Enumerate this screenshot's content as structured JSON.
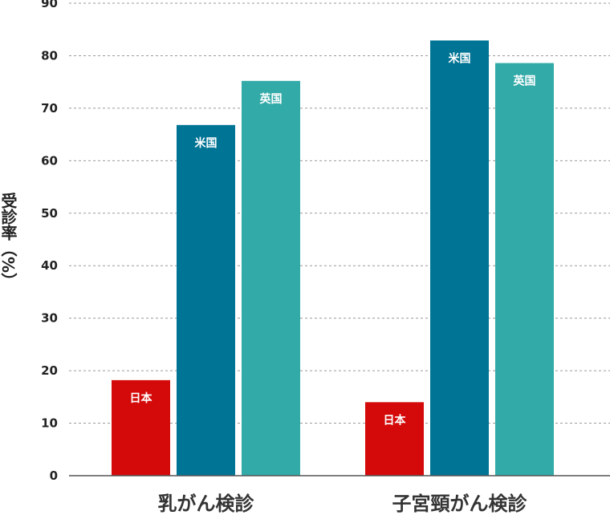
{
  "chart_data": {
    "type": "bar",
    "ylabel": "受診率（%）",
    "ylim": [
      0,
      90
    ],
    "yticks": [
      0,
      10,
      20,
      30,
      40,
      50,
      60,
      70,
      80,
      90
    ],
    "grid": true,
    "categories": [
      "乳がん検診",
      "子宮頸がん検診"
    ],
    "series": [
      {
        "name": "日本",
        "color": "#d40a0a",
        "values": [
          18.2,
          14.0
        ]
      },
      {
        "name": "米国",
        "color": "#007494",
        "values": [
          66.8,
          82.9
        ]
      },
      {
        "name": "英国",
        "color": "#32aaa8",
        "values": [
          75.2,
          78.6
        ]
      }
    ]
  }
}
